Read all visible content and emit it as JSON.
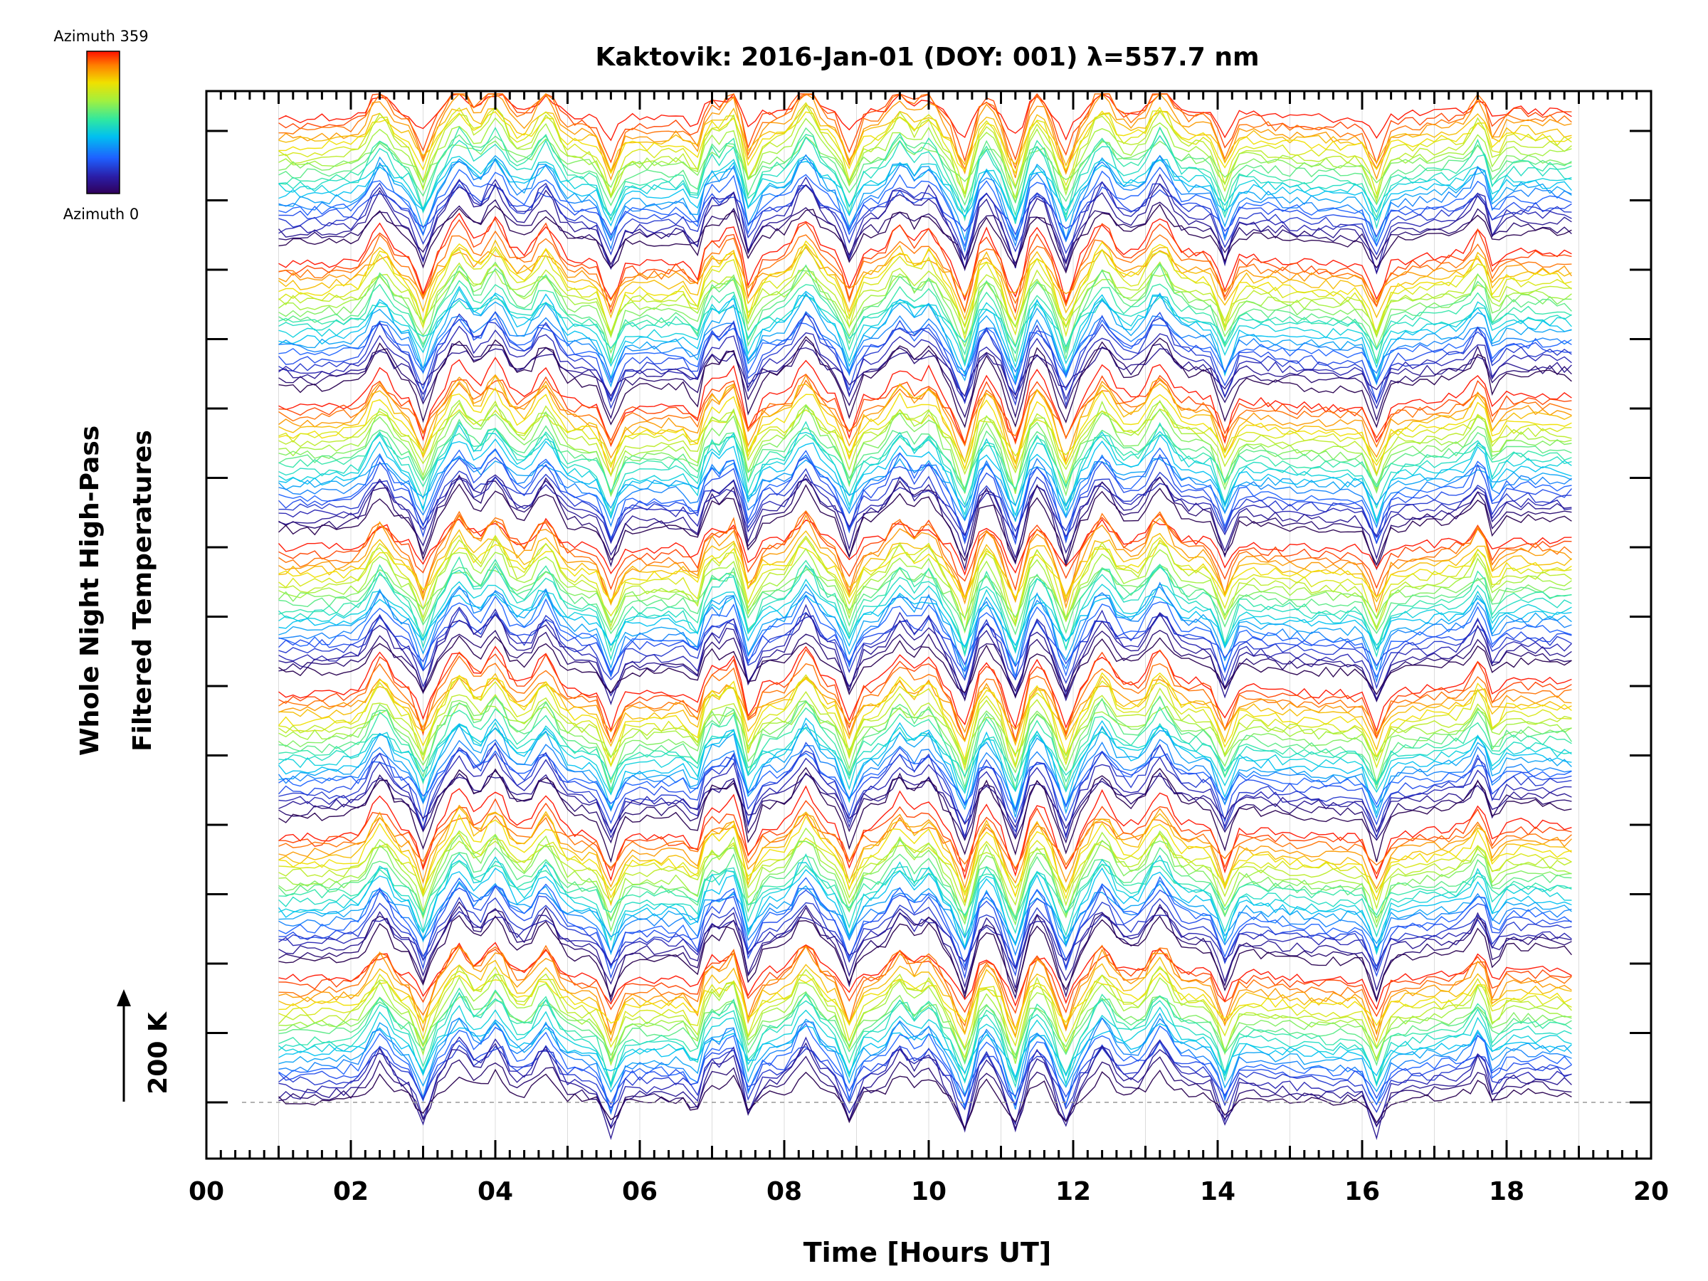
{
  "chart_data": {
    "type": "line",
    "title": "Kaktovik: 2016-Jan-01 (DOY: 001) λ=557.7 nm",
    "xlabel": "Time [Hours UT]",
    "ylabel_line1": "Whole Night High-Pass",
    "ylabel_line2": "Filtered Temperatures",
    "scale_bar_label": "200 K",
    "xlim": [
      0,
      20
    ],
    "x_ticks": [
      "00",
      "02",
      "04",
      "06",
      "08",
      "10",
      "12",
      "14",
      "16",
      "18",
      "20"
    ],
    "y_major_tick_count": 15,
    "data_range_hours": [
      1.0,
      18.95
    ],
    "colorbar": {
      "top_label": "Azimuth 359",
      "bottom_label": "Azimuth 0",
      "colormap": "rainbow"
    },
    "series_description": "Stacked high-pass filtered temperature traces, one per azimuth (0-359), offset vertically in bands; traces colored by azimuth.",
    "bands": 7,
    "traces_per_band": 24,
    "dip_hours": [
      3.0,
      5.6,
      6.8,
      7.5,
      8.9,
      10.5,
      11.2,
      11.9,
      14.1,
      16.2,
      17.8
    ],
    "peak_hours": [
      2.4,
      3.5,
      4.0,
      4.7,
      6.9,
      7.3,
      8.3,
      9.6,
      10.0,
      10.8,
      11.5,
      12.4,
      13.2,
      17.7
    ]
  }
}
